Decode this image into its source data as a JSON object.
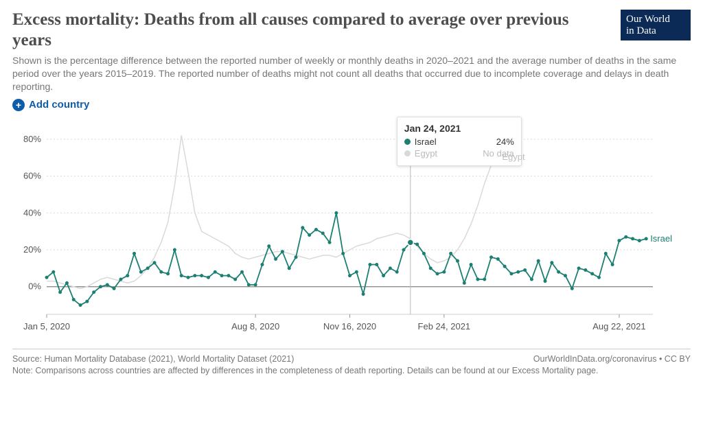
{
  "logo": {
    "line1": "Our World",
    "line2": "in Data",
    "bg": "#0b2a55"
  },
  "title": "Excess mortality: Deaths from all causes compared to average over previous years",
  "subtitle": "Shown is the percentage difference between the reported number of weekly or monthly deaths in 2020–2021 and the average number of deaths in the same period over the years 2015–2019. The reported number of deaths might not count all deaths that occurred due to incomplete coverage and delays in death reporting.",
  "add_country_label": "Add country",
  "chart": {
    "type": "line",
    "background_color": "#ffffff",
    "grid_color": "#d9d9d9",
    "axis_color": "#999",
    "zero_line_color": "#808080",
    "tick_fontsize": 13,
    "tick_color": "#555",
    "ylim": [
      -15,
      90
    ],
    "y_ticks": [
      0,
      20,
      40,
      60,
      80
    ],
    "y_tick_labels": [
      "0%",
      "20%",
      "40%",
      "60%",
      "80%"
    ],
    "x_range_weeks": 90,
    "x_ticks": [
      {
        "x": 0,
        "label": "Jan 5, 2020"
      },
      {
        "x": 31,
        "label": "Aug 8, 2020"
      },
      {
        "x": 45,
        "label": "Nov 16, 2020"
      },
      {
        "x": 59,
        "label": "Feb 24, 2021"
      },
      {
        "x": 85,
        "label": "Aug 22, 2021"
      }
    ],
    "hover_x": 54,
    "series": [
      {
        "name": "Egypt",
        "color": "#d9d9d9",
        "end_label_color": "#bfbfbf",
        "line_width": 1.5,
        "marker_radius": 0,
        "values": [
          3,
          3,
          2,
          1,
          0,
          -1,
          0,
          2,
          4,
          5,
          4,
          3,
          2,
          3,
          6,
          10,
          16,
          24,
          35,
          55,
          82,
          62,
          40,
          30,
          28,
          26,
          24,
          22,
          18,
          16,
          15,
          16,
          17,
          18,
          19,
          19,
          18,
          17,
          16,
          15,
          16,
          17,
          17,
          16,
          18,
          20,
          22,
          23,
          24,
          26,
          27,
          28,
          29,
          28,
          26,
          22,
          18,
          15,
          13,
          14,
          16,
          20,
          26,
          34,
          44,
          56,
          66,
          70
        ]
      },
      {
        "name": "Israel",
        "color": "#1b7f72",
        "end_label_color": "#1b7f72",
        "line_width": 1.8,
        "marker_radius": 2.5,
        "values": [
          5,
          8,
          -3,
          2,
          -7,
          -10,
          -8,
          -3,
          0,
          1,
          -1,
          4,
          6,
          18,
          8,
          10,
          13,
          8,
          7,
          20,
          6,
          5,
          6,
          6,
          5,
          8,
          6,
          6,
          4,
          8,
          1,
          1,
          12,
          22,
          15,
          19,
          10,
          16,
          32,
          28,
          31,
          29,
          24,
          40,
          18,
          6,
          8,
          -4,
          12,
          12,
          6,
          10,
          8,
          20,
          24,
          23,
          18,
          10,
          7,
          8,
          18,
          14,
          2,
          12,
          4,
          4,
          16,
          15,
          11,
          7,
          8,
          9,
          4,
          14,
          3,
          13,
          8,
          6,
          -1,
          10,
          9,
          7,
          5,
          18,
          12,
          25,
          27,
          26,
          25,
          26
        ]
      }
    ]
  },
  "tooltip": {
    "date": "Jan 24, 2021",
    "rows": [
      {
        "label": "Israel",
        "value": "24%",
        "color": "#1b7f72",
        "muted": false
      },
      {
        "label": "Egypt",
        "value": "No data",
        "color": "#d9d9d9",
        "muted": true
      }
    ]
  },
  "footer": {
    "source": "Source: Human Mortality Database (2021), World Mortality Dataset (2021)",
    "right": "OurWorldInData.org/coronavirus • CC BY",
    "note": "Note: Comparisons across countries are affected by differences in the completeness of death reporting. Details can be found at our Excess Mortality page."
  }
}
